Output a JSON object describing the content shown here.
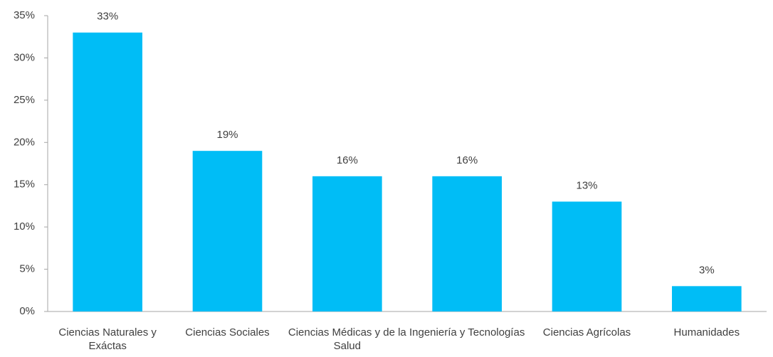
{
  "chart_data": {
    "type": "bar",
    "categories": [
      "Ciencias Naturales y Exáctas",
      "Ciencias Sociales",
      "Ciencias Médicas y de la Salud",
      "Ingeniería y Tecnologías",
      "Ciencias Agrícolas",
      "Humanidades"
    ],
    "values": [
      33,
      19,
      16,
      16,
      13,
      3
    ],
    "value_labels": [
      "33%",
      "19%",
      "16%",
      "16%",
      "13%",
      "3%"
    ],
    "color": "#00bdf6",
    "ylim": [
      0,
      35
    ],
    "yticks": [
      {
        "value": 0,
        "label": "0%"
      },
      {
        "value": 5,
        "label": "5%"
      },
      {
        "value": 10,
        "label": "10%"
      },
      {
        "value": 15,
        "label": "15%"
      },
      {
        "value": 20,
        "label": "20%"
      },
      {
        "value": 25,
        "label": "25%"
      },
      {
        "value": 30,
        "label": "30%"
      },
      {
        "value": 35,
        "label": "35%"
      }
    ],
    "grid": false
  }
}
